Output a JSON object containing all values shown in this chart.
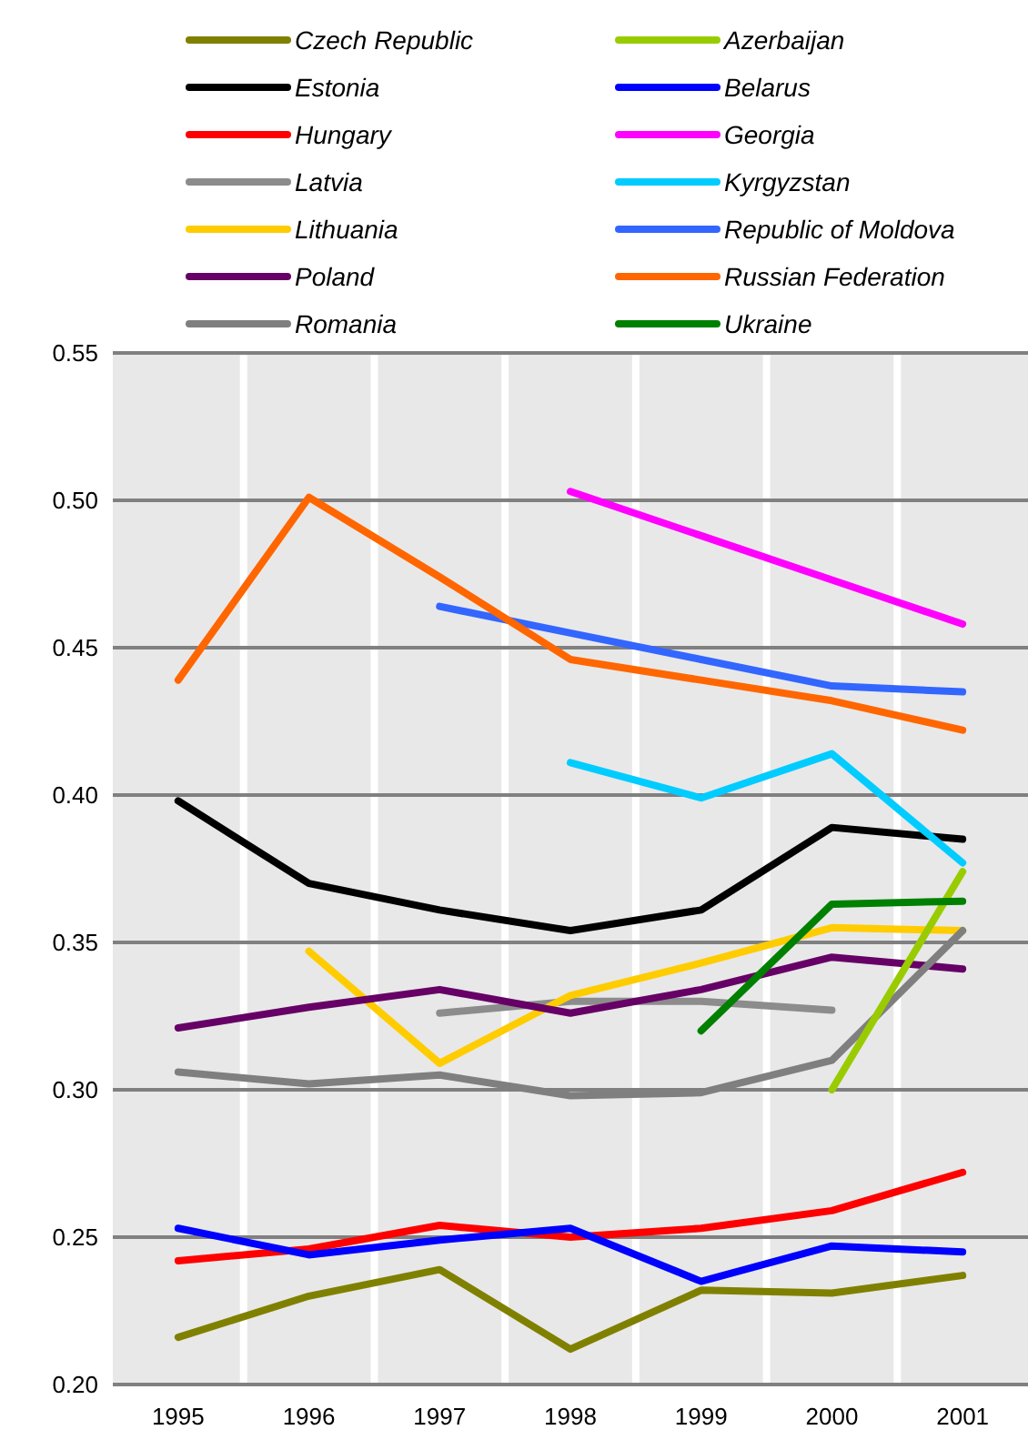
{
  "chart_data": {
    "type": "line",
    "categories": [
      "1995",
      "1996",
      "1997",
      "1998",
      "1999",
      "2000",
      "2001"
    ],
    "ylim": [
      0.2,
      0.55
    ],
    "yticks": [
      {
        "value": 0.2,
        "label": "0.20"
      },
      {
        "value": 0.25,
        "label": "0.25"
      },
      {
        "value": 0.3,
        "label": "0.30"
      },
      {
        "value": 0.35,
        "label": "0.35"
      },
      {
        "value": 0.4,
        "label": "0.40"
      },
      {
        "value": 0.45,
        "label": "0.45"
      },
      {
        "value": 0.5,
        "label": "0.50"
      },
      {
        "value": 0.55,
        "label": "0.55"
      }
    ],
    "grid": true,
    "legend": "top",
    "marker": "none",
    "line_style": "solid",
    "series": [
      {
        "name": "Czech Republic",
        "color": "#808000",
        "values": [
          0.216,
          0.23,
          0.239,
          0.212,
          0.232,
          0.231,
          0.237
        ]
      },
      {
        "name": "Estonia",
        "color": "#000000",
        "values": [
          0.398,
          0.37,
          0.361,
          0.354,
          0.361,
          0.389,
          0.385
        ]
      },
      {
        "name": "Hungary",
        "color": "#ff0000",
        "values": [
          0.242,
          0.246,
          0.254,
          0.25,
          0.253,
          0.259,
          0.272
        ]
      },
      {
        "name": "Latvia",
        "color": "#8c8c8c",
        "values": [
          null,
          null,
          0.326,
          0.33,
          0.33,
          0.327,
          null
        ]
      },
      {
        "name": "Lithuania",
        "color": "#ffcc00",
        "values": [
          null,
          0.347,
          0.309,
          0.332,
          0.343,
          0.355,
          0.354
        ]
      },
      {
        "name": "Poland",
        "color": "#660066",
        "values": [
          0.321,
          0.328,
          0.334,
          0.326,
          0.334,
          0.345,
          0.341
        ]
      },
      {
        "name": "Romania",
        "color": "#7f7f7f",
        "values": [
          0.306,
          0.302,
          0.305,
          0.298,
          0.299,
          0.31,
          0.354
        ]
      },
      {
        "name": "Azerbaijan",
        "color": "#99cc00",
        "values": [
          null,
          null,
          null,
          null,
          null,
          0.3,
          0.374
        ]
      },
      {
        "name": "Belarus",
        "color": "#0000ff",
        "values": [
          0.253,
          0.244,
          0.249,
          0.253,
          0.235,
          0.247,
          0.245
        ]
      },
      {
        "name": "Georgia",
        "color": "#ff00ff",
        "values": [
          null,
          null,
          null,
          0.503,
          0.488,
          0.473,
          0.458
        ]
      },
      {
        "name": "Kyrgyzstan",
        "color": "#00ccff",
        "values": [
          null,
          null,
          null,
          0.411,
          0.399,
          0.414,
          0.377
        ]
      },
      {
        "name": "Republic of Moldova",
        "color": "#3366ff",
        "values": [
          null,
          null,
          0.464,
          0.455,
          0.446,
          0.437,
          0.435
        ]
      },
      {
        "name": "Russian Federation",
        "color": "#ff6600",
        "values": [
          0.439,
          0.501,
          0.474,
          0.446,
          0.439,
          0.432,
          0.422
        ]
      },
      {
        "name": "Ukraine",
        "color": "#008000",
        "values": [
          null,
          null,
          null,
          null,
          0.32,
          0.363,
          0.364
        ]
      }
    ]
  }
}
